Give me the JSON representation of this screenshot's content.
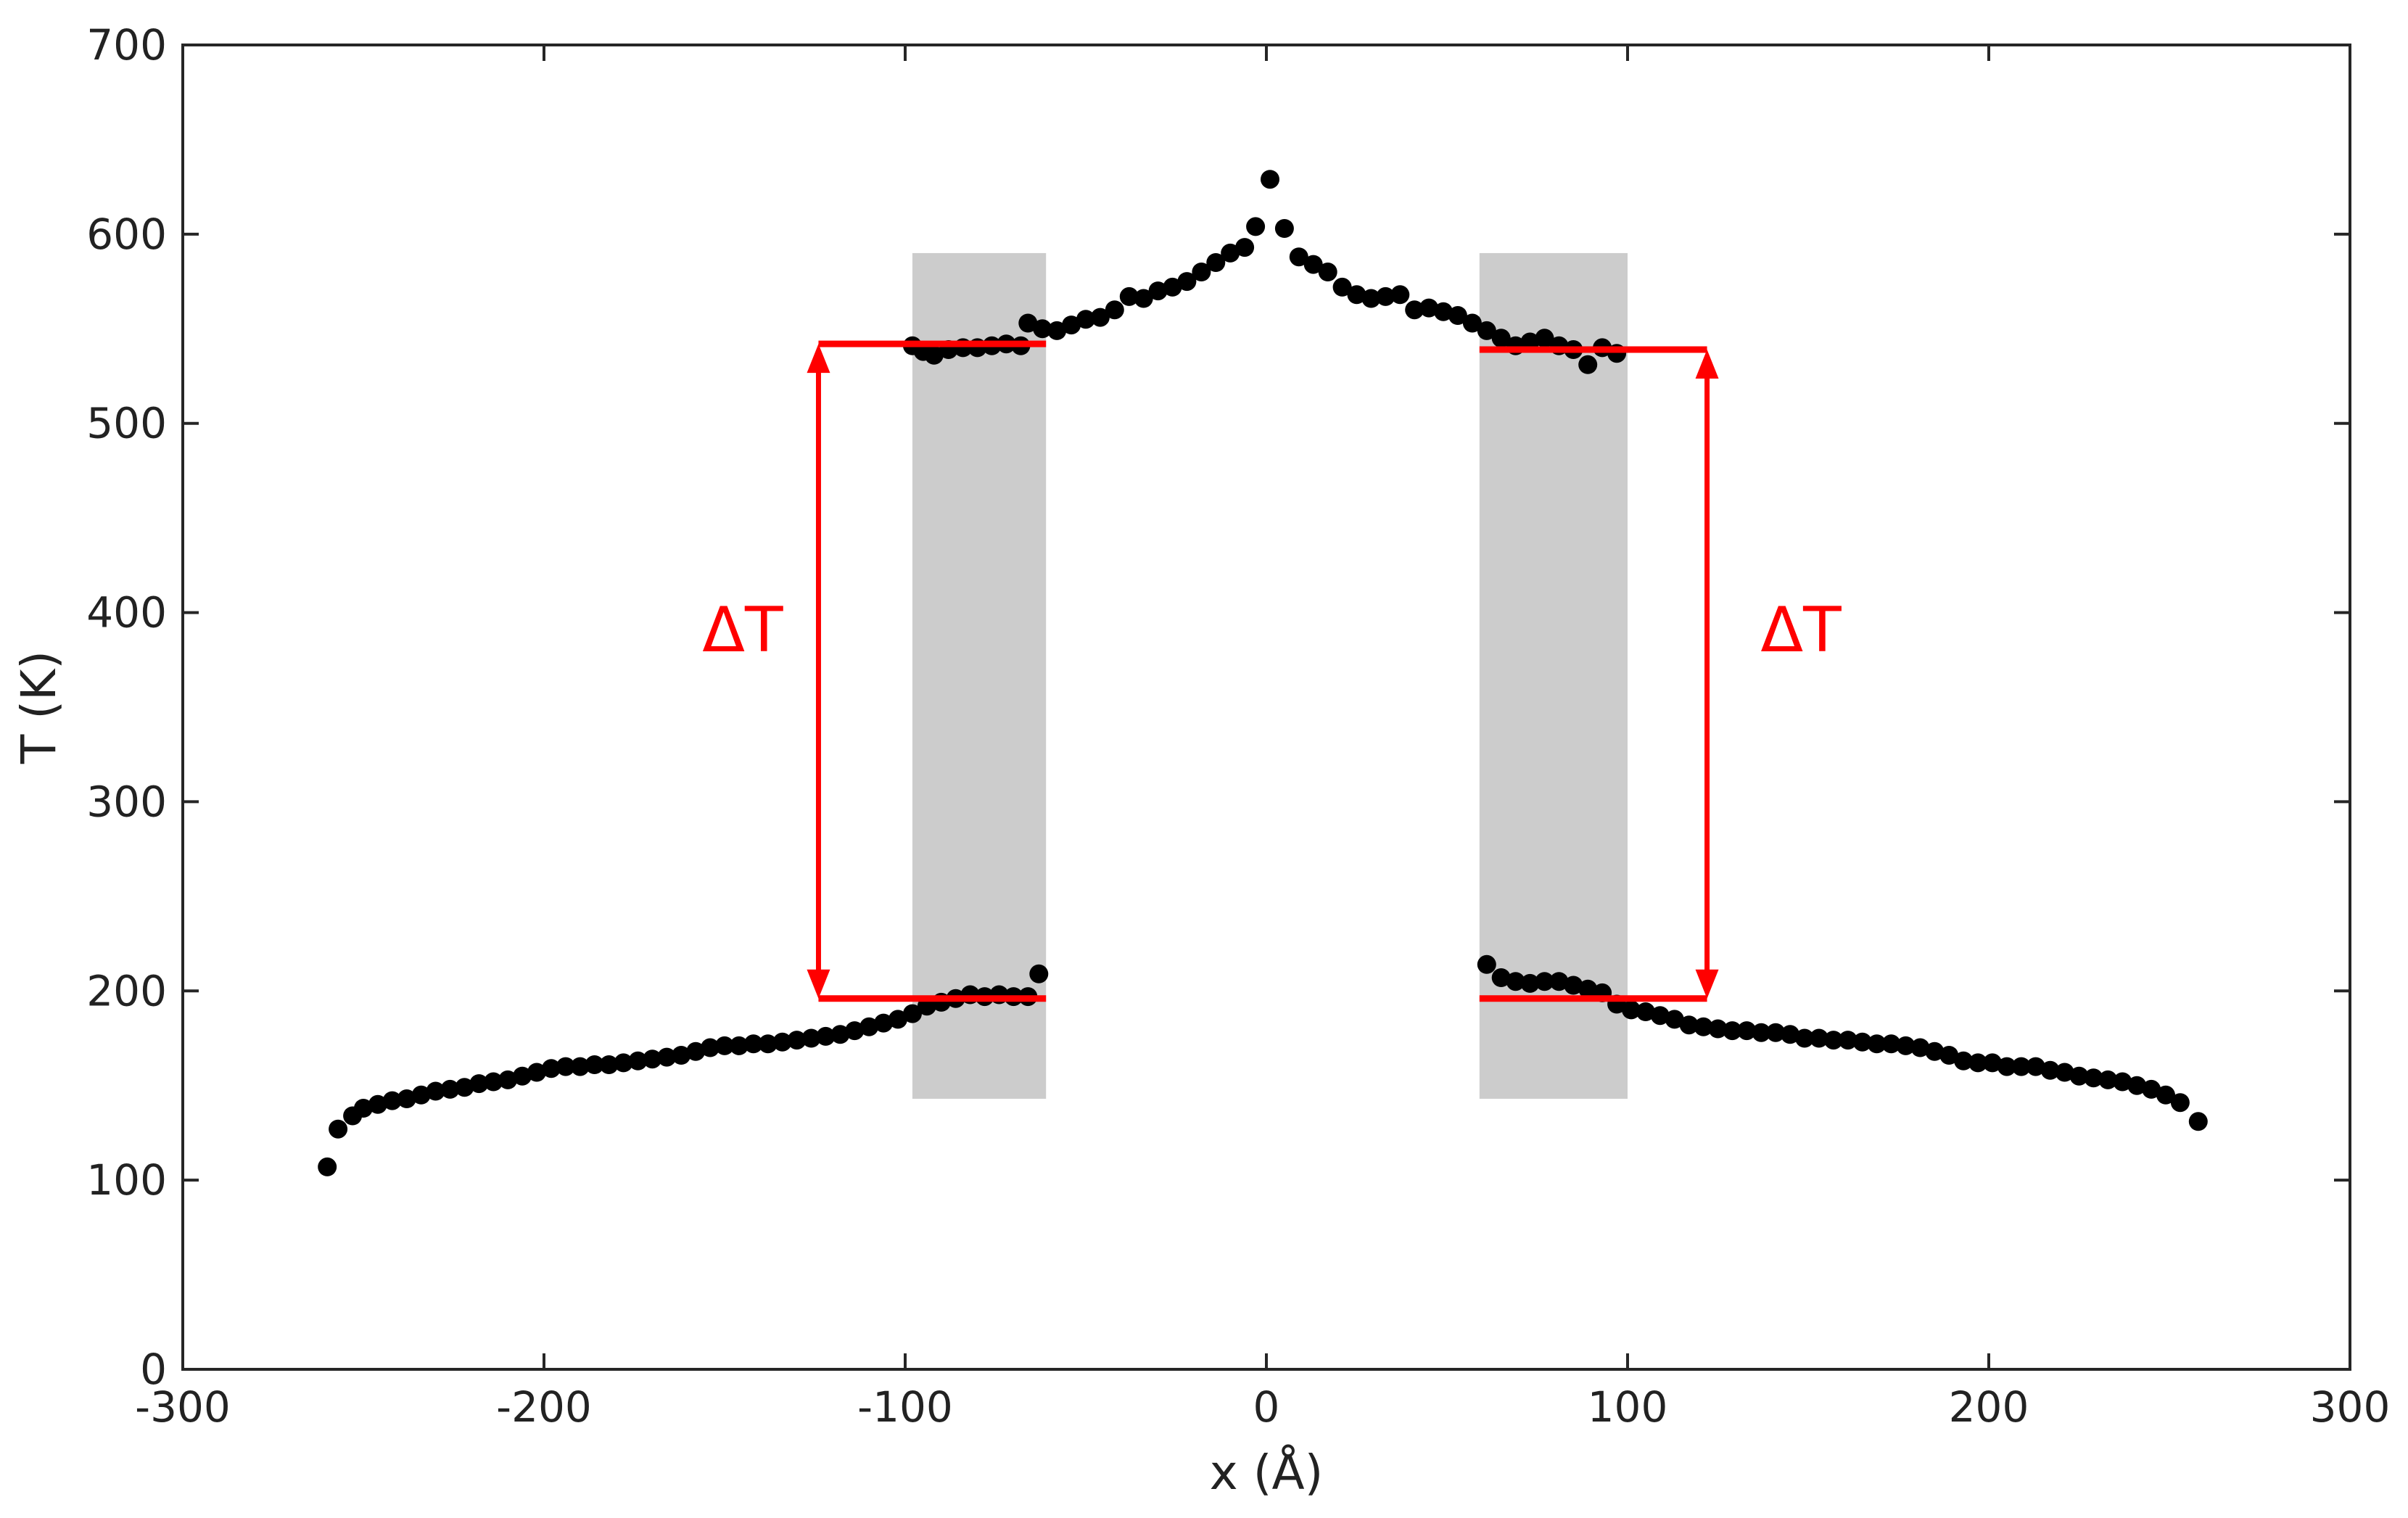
{
  "chart_data": {
    "type": "scatter",
    "xlabel": "x (Å)",
    "ylabel": "T (K)",
    "xlim": [
      -300,
      300
    ],
    "ylim": [
      0,
      700
    ],
    "xticks": [
      -300,
      -200,
      -100,
      0,
      100,
      200,
      300
    ],
    "yticks": [
      0,
      100,
      200,
      300,
      400,
      500,
      600,
      700
    ],
    "grid": false,
    "legend": "none",
    "colors": {
      "points": "#000000",
      "annotation": "#ff0000",
      "shade": "#cccccc"
    },
    "points": [
      [
        -260,
        107
      ],
      [
        -257,
        127
      ],
      [
        -253,
        134
      ],
      [
        -250,
        138
      ],
      [
        -246,
        140
      ],
      [
        -242,
        142
      ],
      [
        -238,
        143
      ],
      [
        -234,
        145
      ],
      [
        -230,
        147
      ],
      [
        -226,
        148
      ],
      [
        -222,
        149
      ],
      [
        -218,
        151
      ],
      [
        -214,
        152
      ],
      [
        -210,
        153
      ],
      [
        -206,
        155
      ],
      [
        -202,
        157
      ],
      [
        -198,
        159
      ],
      [
        -194,
        160
      ],
      [
        -190,
        160
      ],
      [
        -186,
        161
      ],
      [
        -182,
        161
      ],
      [
        -178,
        162
      ],
      [
        -174,
        163
      ],
      [
        -170,
        164
      ],
      [
        -166,
        165
      ],
      [
        -162,
        166
      ],
      [
        -158,
        168
      ],
      [
        -154,
        170
      ],
      [
        -150,
        171
      ],
      [
        -146,
        171
      ],
      [
        -142,
        172
      ],
      [
        -138,
        172
      ],
      [
        -134,
        173
      ],
      [
        -130,
        174
      ],
      [
        -126,
        175
      ],
      [
        -122,
        176
      ],
      [
        -118,
        177
      ],
      [
        -114,
        179
      ],
      [
        -110,
        181
      ],
      [
        -106,
        183
      ],
      [
        -102,
        185
      ],
      [
        -98,
        188
      ],
      [
        -94,
        192
      ],
      [
        -90,
        194
      ],
      [
        -86,
        196
      ],
      [
        -82,
        198
      ],
      [
        -78,
        197
      ],
      [
        -74,
        198
      ],
      [
        -70,
        197
      ],
      [
        -66,
        197
      ],
      [
        -63,
        209
      ],
      [
        -98,
        541
      ],
      [
        -95,
        538
      ],
      [
        -92,
        536
      ],
      [
        -88,
        539
      ],
      [
        -84,
        540
      ],
      [
        -80,
        540
      ],
      [
        -76,
        541
      ],
      [
        -72,
        542
      ],
      [
        -68,
        541
      ],
      [
        -66,
        553
      ],
      [
        -62,
        550
      ],
      [
        -58,
        549
      ],
      [
        -54,
        552
      ],
      [
        -50,
        555
      ],
      [
        -46,
        556
      ],
      [
        -42,
        560
      ],
      [
        -38,
        567
      ],
      [
        -34,
        566
      ],
      [
        -30,
        570
      ],
      [
        -26,
        572
      ],
      [
        -22,
        575
      ],
      [
        -18,
        580
      ],
      [
        -14,
        585
      ],
      [
        -10,
        590
      ],
      [
        -6,
        593
      ],
      [
        -3,
        604
      ],
      [
        1,
        629
      ],
      [
        5,
        603
      ],
      [
        9,
        588
      ],
      [
        13,
        584
      ],
      [
        17,
        580
      ],
      [
        21,
        572
      ],
      [
        25,
        568
      ],
      [
        29,
        566
      ],
      [
        33,
        567
      ],
      [
        37,
        568
      ],
      [
        41,
        560
      ],
      [
        45,
        561
      ],
      [
        49,
        559
      ],
      [
        53,
        557
      ],
      [
        57,
        553
      ],
      [
        61,
        549
      ],
      [
        65,
        545
      ],
      [
        69,
        541
      ],
      [
        73,
        543
      ],
      [
        77,
        545
      ],
      [
        81,
        541
      ],
      [
        85,
        539
      ],
      [
        89,
        531
      ],
      [
        93,
        540
      ],
      [
        97,
        537
      ],
      [
        61,
        214
      ],
      [
        65,
        207
      ],
      [
        69,
        205
      ],
      [
        73,
        204
      ],
      [
        77,
        205
      ],
      [
        81,
        205
      ],
      [
        85,
        203
      ],
      [
        89,
        201
      ],
      [
        93,
        199
      ],
      [
        97,
        193
      ],
      [
        101,
        190
      ],
      [
        105,
        189
      ],
      [
        109,
        187
      ],
      [
        113,
        185
      ],
      [
        117,
        182
      ],
      [
        121,
        181
      ],
      [
        125,
        180
      ],
      [
        129,
        179
      ],
      [
        133,
        179
      ],
      [
        137,
        178
      ],
      [
        141,
        178
      ],
      [
        145,
        177
      ],
      [
        149,
        175
      ],
      [
        153,
        175
      ],
      [
        157,
        174
      ],
      [
        161,
        174
      ],
      [
        165,
        173
      ],
      [
        169,
        172
      ],
      [
        173,
        172
      ],
      [
        177,
        171
      ],
      [
        181,
        170
      ],
      [
        185,
        168
      ],
      [
        189,
        166
      ],
      [
        193,
        163
      ],
      [
        197,
        162
      ],
      [
        201,
        162
      ],
      [
        205,
        160
      ],
      [
        209,
        160
      ],
      [
        213,
        160
      ],
      [
        217,
        158
      ],
      [
        221,
        157
      ],
      [
        225,
        155
      ],
      [
        229,
        154
      ],
      [
        233,
        153
      ],
      [
        237,
        152
      ],
      [
        241,
        150
      ],
      [
        245,
        148
      ],
      [
        249,
        145
      ],
      [
        253,
        141
      ],
      [
        258,
        131
      ]
    ],
    "shaded_regions": [
      {
        "x": [
          -98,
          -61
        ],
        "y": [
          143,
          590
        ]
      },
      {
        "x": [
          59,
          100
        ],
        "y": [
          143,
          590
        ]
      }
    ],
    "annotations": [
      {
        "label": "ΔT",
        "label_x": -145,
        "label_y": 378,
        "arrow_x": -124,
        "arrow_from": 196,
        "arrow_to": 542,
        "hi_line": [
          -124,
          -61,
          542
        ],
        "lo_line": [
          -124,
          -61,
          196
        ]
      },
      {
        "label": "ΔT",
        "label_x": 148,
        "label_y": 378,
        "arrow_x": 122,
        "arrow_from": 196,
        "arrow_to": 539,
        "hi_line": [
          59,
          122,
          539
        ],
        "lo_line": [
          59,
          122,
          196
        ]
      }
    ]
  }
}
